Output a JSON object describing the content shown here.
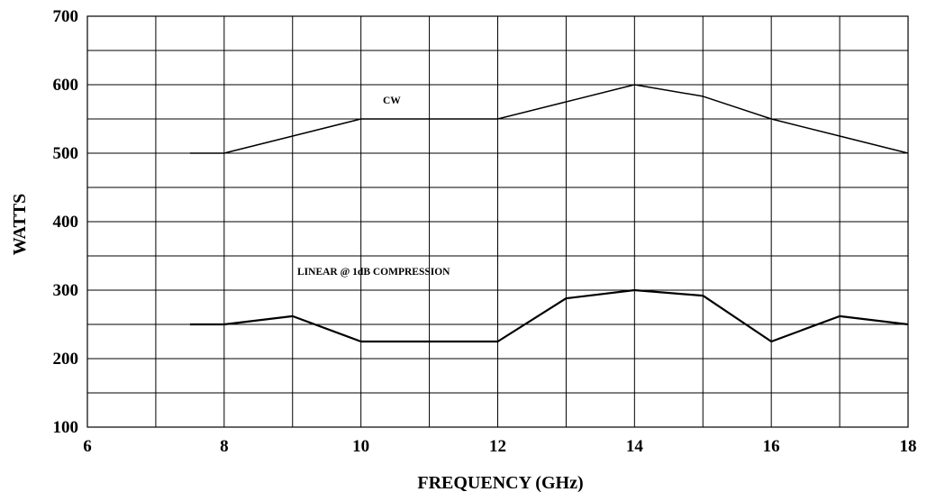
{
  "chart_data": {
    "type": "line",
    "title": "",
    "xlabel": "FREQUENCY (GHz)",
    "ylabel": "WATTS",
    "xlim": [
      6,
      18
    ],
    "ylim": [
      100,
      700
    ],
    "x_ticks": [
      6,
      8,
      10,
      12,
      14,
      16,
      18
    ],
    "x_tick_labels": [
      "6",
      "8",
      "10",
      "12",
      "14",
      "16",
      "18"
    ],
    "y_ticks": [
      100,
      200,
      300,
      400,
      500,
      600,
      700
    ],
    "y_tick_labels": [
      "100",
      "200",
      "300",
      "400",
      "500",
      "600",
      "700"
    ],
    "x_grid_step": 1,
    "y_grid_step": 50,
    "grid": true,
    "series": [
      {
        "name": "CW",
        "color": "#000000",
        "x": [
          7.5,
          8,
          9,
          10,
          11,
          12,
          13,
          14,
          15,
          16,
          17,
          18
        ],
        "y": [
          500,
          500,
          525,
          550,
          550,
          550,
          575,
          600,
          583,
          550,
          525,
          500
        ]
      },
      {
        "name": "LINEAR @ 1dB COMPRESSION",
        "color": "#000000",
        "x": [
          7.5,
          8,
          9,
          10,
          11,
          12,
          13,
          14,
          15,
          16,
          17,
          18
        ],
        "y": [
          250,
          250,
          262,
          225,
          225,
          225,
          288,
          300,
          292,
          225,
          262,
          250
        ]
      }
    ],
    "annotations": [
      {
        "text": "CW",
        "x": 10.5,
        "y": 575
      },
      {
        "text": "LINEAR @ 1dB COMPRESSION",
        "x": 10.5,
        "y": 325
      }
    ]
  }
}
